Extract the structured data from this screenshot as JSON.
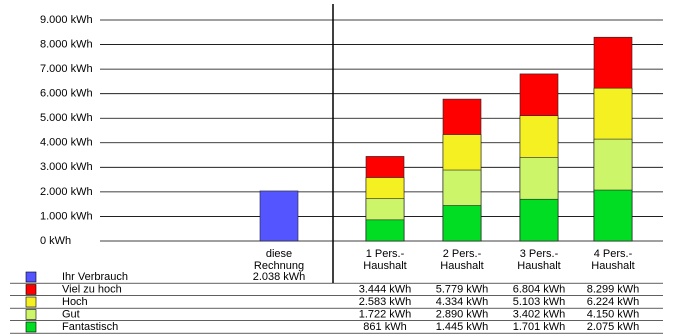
{
  "chart_data": {
    "type": "bar",
    "categories": [
      null,
      "diese\nRechnung",
      "1 Pers.-\nHaushalt",
      "2 Pers.-\nHaushalt",
      "3 Pers.-\nHaushalt",
      "4 Pers.-\nHaushalt"
    ],
    "series": [
      {
        "name": "Ihr Verbrauch",
        "color": "#5555ff",
        "values": [
          null,
          2038,
          null,
          null,
          null,
          null
        ],
        "value_labels": [
          null,
          "2.038 kWh",
          null,
          null,
          null,
          null
        ]
      },
      {
        "name": "Viel zu hoch",
        "color": "#ff0000",
        "values": [
          null,
          null,
          3444,
          5779,
          6804,
          8299
        ],
        "value_labels": [
          null,
          null,
          "3.444 kWh",
          "5.779 kWh",
          "6.804 kWh",
          "8.299 kWh"
        ]
      },
      {
        "name": "Hoch",
        "color": "#f5f021",
        "values": [
          null,
          null,
          2583,
          4334,
          5103,
          6224
        ],
        "value_labels": [
          null,
          null,
          "2.583 kWh",
          "4.334 kWh",
          "5.103 kWh",
          "6.224 kWh"
        ]
      },
      {
        "name": "Gut",
        "color": "#ccf56a",
        "values": [
          null,
          null,
          1722,
          2890,
          3402,
          4150
        ],
        "value_labels": [
          null,
          null,
          "1.722 kWh",
          "2.890 kWh",
          "3.402 kWh",
          "4.150 kWh"
        ]
      },
      {
        "name": "Fantastisch",
        "color": "#00dd22",
        "values": [
          null,
          null,
          861,
          1445,
          1701,
          2075
        ],
        "value_labels": [
          null,
          null,
          "861 kWh",
          "1.445 kWh",
          "1.701 kWh",
          "2.075 kWh"
        ]
      }
    ],
    "ylim": [
      0,
      9000
    ],
    "yticks": [
      {
        "value": 0,
        "label": "0 kWh"
      },
      {
        "value": 1000,
        "label": "1.000 kWh"
      },
      {
        "value": 2000,
        "label": "2.000 kWh"
      },
      {
        "value": 3000,
        "label": "3.000 kWh"
      },
      {
        "value": 4000,
        "label": "4.000 kWh"
      },
      {
        "value": 5000,
        "label": "5.000 kWh"
      },
      {
        "value": 6000,
        "label": "6.000 kWh"
      },
      {
        "value": 7000,
        "label": "7.000 kWh"
      },
      {
        "value": 8000,
        "label": "8.000 kWh"
      },
      {
        "value": 9000,
        "label": "9.000 kWh"
      }
    ],
    "grid": true
  }
}
